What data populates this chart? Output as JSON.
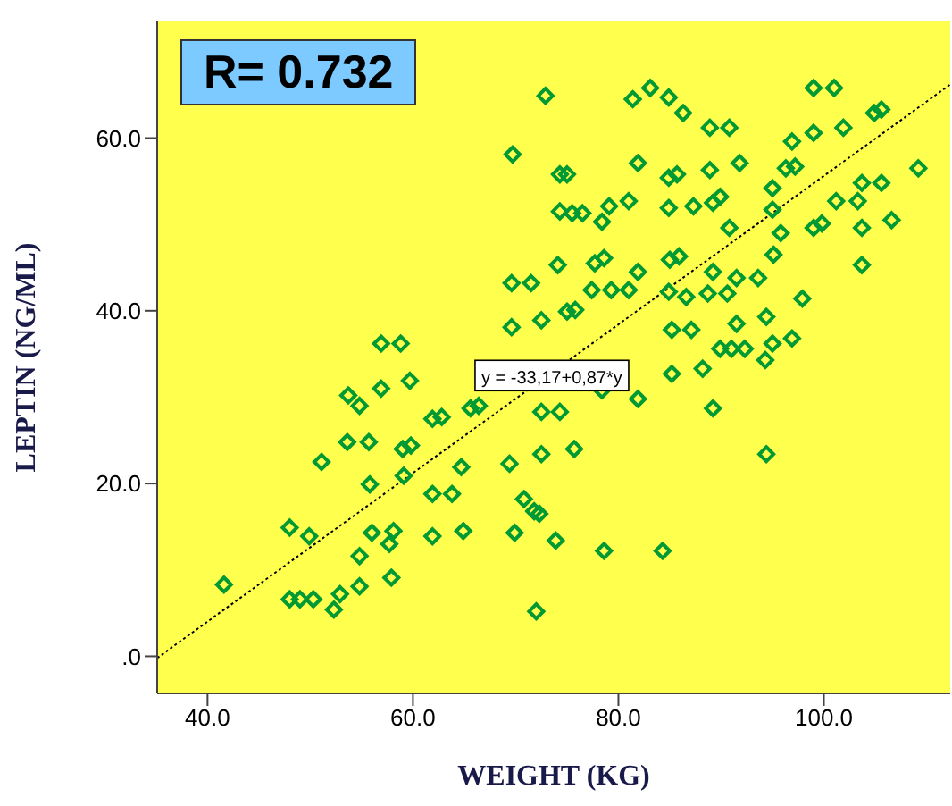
{
  "chart_data": {
    "type": "scatter",
    "xlabel": "WEIGHT (KG)",
    "ylabel": "LEPTIN (NG/ML)",
    "xlim": [
      35.1,
      112.3
    ],
    "ylim": [
      -4.3,
      73.5
    ],
    "xticks": [
      {
        "value": 40,
        "label": "40.0"
      },
      {
        "value": 60,
        "label": "60.0"
      },
      {
        "value": 80,
        "label": "80.0"
      },
      {
        "value": 100,
        "label": "100.0"
      }
    ],
    "yticks": [
      {
        "value": 0,
        "label": ".0"
      },
      {
        "value": 20,
        "label": "20.0"
      },
      {
        "value": 40,
        "label": "40.0"
      },
      {
        "value": 60,
        "label": "60.0"
      }
    ],
    "marker": "diamond",
    "grid": false,
    "annotations": [
      "R= 0.732",
      {
        "text": "y = -33,17+0,87*y",
        "x": 73,
        "y": 32.4
      }
    ],
    "series": [
      {
        "color": "#009933",
        "x": [
          72.9,
          69.7,
          74.3,
          74.3,
          74.1,
          69.6,
          71.5,
          69.6,
          72.5,
          56.9,
          58.8,
          81.4,
          83.1,
          84.9,
          86.3,
          88.9,
          90.8,
          99.0,
          101.0,
          104.9,
          105.6,
          101.9,
          99.0,
          96.9,
          75.0,
          81.9,
          84.9,
          85.7,
          88.9,
          91.8,
          96.3,
          97.2,
          109.2,
          103.7,
          105.6,
          95.0,
          75.5,
          76.5,
          79.1,
          81.0,
          78.4,
          84.9,
          87.3,
          89.2,
          89.9,
          95.0,
          101.2,
          103.3,
          90.8,
          95.8,
          99.0,
          99.8,
          103.7,
          106.6,
          103.7,
          95.1,
          77.7,
          78.6,
          85.0,
          85.9,
          81.9,
          89.2,
          91.5,
          93.6,
          77.4,
          79.3,
          81.0,
          84.9,
          86.6,
          88.7,
          90.6,
          97.9,
          75.0,
          75.8,
          94.4,
          91.5,
          85.2,
          87.1,
          96.9,
          95.0,
          89.9,
          91.0,
          92.3,
          59.7,
          53.7,
          56.9,
          54.8,
          61.9,
          62.8,
          65.6,
          66.4,
          72.5,
          74.3,
          53.6,
          55.7,
          51.1,
          59.0,
          59.8,
          55.8,
          59.1,
          61.9,
          63.8,
          64.7,
          69.4,
          72.5,
          70.8,
          71.8,
          48.0,
          49.9,
          56.0,
          58.1,
          57.7,
          54.8,
          61.9,
          64.9,
          69.9,
          73.9,
          41.6,
          48.0,
          49.0,
          50.3,
          52.9,
          52.3,
          54.8,
          57.9,
          72.0,
          78.4,
          81.9,
          85.2,
          88.2,
          94.3,
          89.2,
          75.7,
          94.4,
          72.3,
          78.6,
          84.3
        ],
        "values": [
          64.9,
          58.1,
          55.8,
          51.5,
          45.3,
          43.2,
          43.2,
          38.1,
          38.9,
          36.2,
          36.2,
          64.5,
          65.8,
          64.7,
          62.9,
          61.2,
          61.2,
          65.8,
          65.8,
          62.9,
          63.3,
          61.2,
          60.6,
          59.6,
          55.8,
          57.1,
          55.4,
          55.8,
          56.3,
          57.1,
          56.5,
          56.7,
          56.5,
          54.8,
          54.8,
          54.2,
          51.3,
          51.3,
          52.1,
          52.7,
          50.3,
          51.9,
          52.1,
          52.5,
          53.2,
          51.7,
          52.7,
          52.7,
          49.6,
          49.0,
          49.6,
          50.1,
          49.6,
          50.5,
          45.3,
          46.5,
          45.5,
          46.1,
          45.9,
          46.3,
          44.5,
          44.5,
          43.8,
          43.8,
          42.4,
          42.4,
          42.4,
          42.2,
          41.6,
          42.0,
          42.0,
          41.4,
          39.9,
          40.1,
          39.3,
          38.5,
          37.8,
          37.8,
          36.8,
          36.2,
          35.6,
          35.6,
          35.6,
          31.9,
          30.2,
          31.0,
          29.0,
          27.5,
          27.7,
          28.7,
          29.0,
          28.3,
          28.3,
          24.8,
          24.8,
          22.5,
          24.0,
          24.4,
          19.9,
          20.9,
          18.8,
          18.8,
          21.9,
          22.3,
          23.4,
          18.2,
          16.8,
          14.9,
          13.9,
          14.3,
          14.5,
          13.0,
          11.6,
          13.9,
          14.5,
          14.3,
          13.4,
          8.3,
          6.6,
          6.6,
          6.6,
          7.2,
          5.4,
          8.1,
          9.1,
          5.2,
          30.8,
          29.8,
          32.7,
          33.3,
          34.3,
          28.7,
          24.0,
          23.4,
          16.5,
          12.2,
          12.2
        ]
      },
      {
        "type": "line",
        "color": "#000000",
        "line_style": "dotted",
        "marker": "none",
        "x": [
          35.1,
          112.3
        ],
        "values": [
          -0.2,
          66.2
        ]
      }
    ]
  }
}
